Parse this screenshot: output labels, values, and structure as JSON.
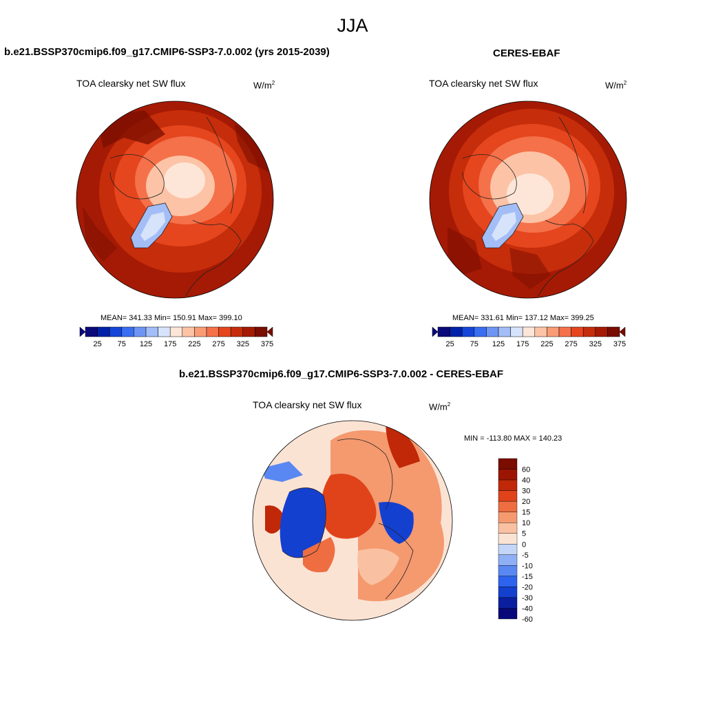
{
  "title": "JJA",
  "colors": {
    "seq": [
      "#0a0a7a",
      "#0022a8",
      "#1646d8",
      "#3a6ef0",
      "#6e95f4",
      "#a3bdf7",
      "#d7e3fa",
      "#fde6d8",
      "#fcc3a6",
      "#f99c76",
      "#f4714a",
      "#e5461e",
      "#c62d0a",
      "#a51a04",
      "#7a0d00"
    ],
    "diff": [
      "#08087a",
      "#0a1fa0",
      "#1440d0",
      "#2d63ee",
      "#5a88f2",
      "#8fb0f5",
      "#c4d6f8",
      "#fbe3d4",
      "#f9c1a2",
      "#f5996f",
      "#ee6e42",
      "#e0431a",
      "#c02808",
      "#9c1502",
      "#7a0d00"
    ]
  },
  "chart_data": [
    {
      "type": "heatmap",
      "projection": "north-polar-stereographic",
      "title": "b.e21.BSSP370cmip6.f09_g17.CMIP6-SSP3-7.0.002 (yrs 2015-2039)",
      "variable": "TOA clearsky net SW flux",
      "units": "W/m",
      "units_exp": "2",
      "stats": {
        "mean": "341.33",
        "min": "150.91",
        "max": "399.10"
      },
      "stats_text": "MEAN= 341.33  Min= 150.91  Max= 399.10",
      "colorbar": {
        "orientation": "horizontal",
        "levels": [
          25,
          50,
          75,
          100,
          125,
          150,
          175,
          200,
          225,
          250,
          275,
          300,
          325,
          350,
          375
        ],
        "tick_labels": [
          "25",
          "75",
          "125",
          "175",
          "225",
          "275",
          "325",
          "375"
        ]
      }
    },
    {
      "type": "heatmap",
      "projection": "north-polar-stereographic",
      "title": "CERES-EBAF",
      "variable": "TOA clearsky net SW flux",
      "units": "W/m",
      "units_exp": "2",
      "stats": {
        "mean": "331.61",
        "min": "137.12",
        "max": "399.25"
      },
      "stats_text": "MEAN= 331.61  Min= 137.12  Max= 399.25",
      "colorbar": {
        "orientation": "horizontal",
        "levels": [
          25,
          50,
          75,
          100,
          125,
          150,
          175,
          200,
          225,
          250,
          275,
          300,
          325,
          350,
          375
        ],
        "tick_labels": [
          "25",
          "75",
          "125",
          "175",
          "225",
          "275",
          "325",
          "375"
        ]
      }
    },
    {
      "type": "heatmap",
      "projection": "north-polar-stereographic",
      "title": "b.e21.BSSP370cmip6.f09_g17.CMIP6-SSP3-7.0.002 - CERES-EBAF",
      "variable": "TOA clearsky net SW flux",
      "units": "W/m",
      "units_exp": "2",
      "stats": {
        "min": "-113.80",
        "max": "140.23"
      },
      "stats_text": "MIN = -113.80 MAX = 140.23",
      "colorbar": {
        "orientation": "vertical",
        "tick_labels": [
          "60",
          "40",
          "30",
          "20",
          "15",
          "10",
          "5",
          "0",
          "-5",
          "-10",
          "-15",
          "-20",
          "-30",
          "-40",
          "-60"
        ]
      }
    }
  ]
}
